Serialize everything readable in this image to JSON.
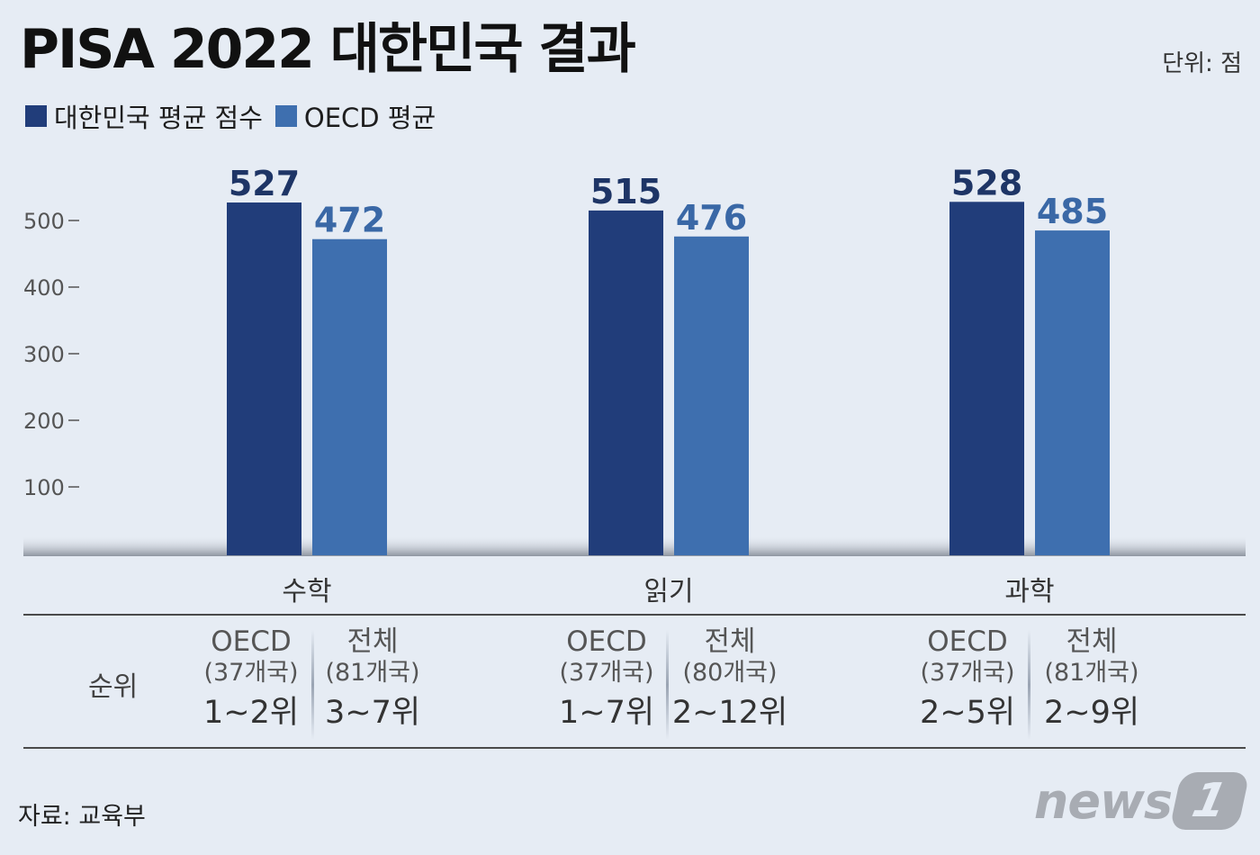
{
  "title": "PISA 2022 대한민국 결과",
  "unit": "단위: 점",
  "legend": [
    {
      "label": "대한민국 평균 점수",
      "color": "#213d7a"
    },
    {
      "label": "OECD 평균",
      "color": "#3e6faf"
    }
  ],
  "chart_data": {
    "type": "bar",
    "categories": [
      "수학",
      "읽기",
      "과학"
    ],
    "series": [
      {
        "name": "대한민국 평균 점수",
        "values": [
          527,
          515,
          528
        ],
        "color": "#213d7a"
      },
      {
        "name": "OECD 평균",
        "values": [
          472,
          476,
          485
        ],
        "color": "#3e6faf"
      }
    ],
    "ylim": [
      0,
      550
    ],
    "yticks": [
      100,
      200,
      300,
      400,
      500
    ],
    "grid": false,
    "legend_position": "top-left"
  },
  "rank": {
    "title": "순위",
    "columns": [
      {
        "l1": "OECD",
        "l2": "(37개국)",
        "l3": "1~2위"
      },
      {
        "l1": "전체",
        "l2": "(81개국)",
        "l3": "3~7위"
      },
      {
        "l1": "OECD",
        "l2": "(37개국)",
        "l3": "1~7위"
      },
      {
        "l1": "전체",
        "l2": "(80개국)",
        "l3": "2~12위"
      },
      {
        "l1": "OECD",
        "l2": "(37개국)",
        "l3": "2~5위"
      },
      {
        "l1": "전체",
        "l2": "(81개국)",
        "l3": "2~9위"
      }
    ]
  },
  "source": "자료: 교육부",
  "logo": {
    "text": "news",
    "badge": "1"
  }
}
